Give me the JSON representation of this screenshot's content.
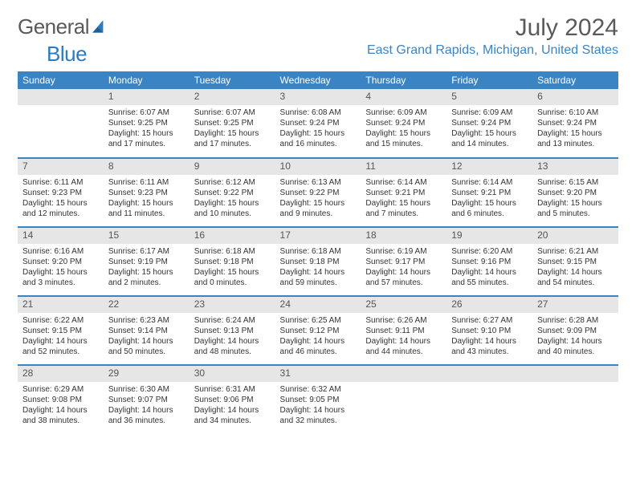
{
  "brand": {
    "part1": "General",
    "part2": "Blue"
  },
  "logo_colors": {
    "general": "#5a5a5a",
    "blue": "#2a7bbf",
    "sail": "#2a7bbf"
  },
  "header": {
    "month_year": "July 2024",
    "location": "East Grand Rapids, Michigan, United States"
  },
  "style": {
    "header_bg": "#3a84c4",
    "header_text": "#ffffff",
    "daynum_bg": "#e6e6e6",
    "row_border": "#3a84c4",
    "body_text": "#333333",
    "location_color": "#3a84c4",
    "title_color": "#5a5a5a",
    "font_family": "Arial, Helvetica, sans-serif",
    "title_fontsize_pt": 22,
    "location_fontsize_pt": 12,
    "th_fontsize_pt": 9,
    "cell_fontsize_pt": 7.5
  },
  "day_labels": [
    "Sunday",
    "Monday",
    "Tuesday",
    "Wednesday",
    "Thursday",
    "Friday",
    "Saturday"
  ],
  "weeks": [
    [
      {
        "n": "",
        "lines": []
      },
      {
        "n": "1",
        "lines": [
          "Sunrise: 6:07 AM",
          "Sunset: 9:25 PM",
          "Daylight: 15 hours and 17 minutes."
        ]
      },
      {
        "n": "2",
        "lines": [
          "Sunrise: 6:07 AM",
          "Sunset: 9:25 PM",
          "Daylight: 15 hours and 17 minutes."
        ]
      },
      {
        "n": "3",
        "lines": [
          "Sunrise: 6:08 AM",
          "Sunset: 9:24 PM",
          "Daylight: 15 hours and 16 minutes."
        ]
      },
      {
        "n": "4",
        "lines": [
          "Sunrise: 6:09 AM",
          "Sunset: 9:24 PM",
          "Daylight: 15 hours and 15 minutes."
        ]
      },
      {
        "n": "5",
        "lines": [
          "Sunrise: 6:09 AM",
          "Sunset: 9:24 PM",
          "Daylight: 15 hours and 14 minutes."
        ]
      },
      {
        "n": "6",
        "lines": [
          "Sunrise: 6:10 AM",
          "Sunset: 9:24 PM",
          "Daylight: 15 hours and 13 minutes."
        ]
      }
    ],
    [
      {
        "n": "7",
        "lines": [
          "Sunrise: 6:11 AM",
          "Sunset: 9:23 PM",
          "Daylight: 15 hours and 12 minutes."
        ]
      },
      {
        "n": "8",
        "lines": [
          "Sunrise: 6:11 AM",
          "Sunset: 9:23 PM",
          "Daylight: 15 hours and 11 minutes."
        ]
      },
      {
        "n": "9",
        "lines": [
          "Sunrise: 6:12 AM",
          "Sunset: 9:22 PM",
          "Daylight: 15 hours and 10 minutes."
        ]
      },
      {
        "n": "10",
        "lines": [
          "Sunrise: 6:13 AM",
          "Sunset: 9:22 PM",
          "Daylight: 15 hours and 9 minutes."
        ]
      },
      {
        "n": "11",
        "lines": [
          "Sunrise: 6:14 AM",
          "Sunset: 9:21 PM",
          "Daylight: 15 hours and 7 minutes."
        ]
      },
      {
        "n": "12",
        "lines": [
          "Sunrise: 6:14 AM",
          "Sunset: 9:21 PM",
          "Daylight: 15 hours and 6 minutes."
        ]
      },
      {
        "n": "13",
        "lines": [
          "Sunrise: 6:15 AM",
          "Sunset: 9:20 PM",
          "Daylight: 15 hours and 5 minutes."
        ]
      }
    ],
    [
      {
        "n": "14",
        "lines": [
          "Sunrise: 6:16 AM",
          "Sunset: 9:20 PM",
          "Daylight: 15 hours and 3 minutes."
        ]
      },
      {
        "n": "15",
        "lines": [
          "Sunrise: 6:17 AM",
          "Sunset: 9:19 PM",
          "Daylight: 15 hours and 2 minutes."
        ]
      },
      {
        "n": "16",
        "lines": [
          "Sunrise: 6:18 AM",
          "Sunset: 9:18 PM",
          "Daylight: 15 hours and 0 minutes."
        ]
      },
      {
        "n": "17",
        "lines": [
          "Sunrise: 6:18 AM",
          "Sunset: 9:18 PM",
          "Daylight: 14 hours and 59 minutes."
        ]
      },
      {
        "n": "18",
        "lines": [
          "Sunrise: 6:19 AM",
          "Sunset: 9:17 PM",
          "Daylight: 14 hours and 57 minutes."
        ]
      },
      {
        "n": "19",
        "lines": [
          "Sunrise: 6:20 AM",
          "Sunset: 9:16 PM",
          "Daylight: 14 hours and 55 minutes."
        ]
      },
      {
        "n": "20",
        "lines": [
          "Sunrise: 6:21 AM",
          "Sunset: 9:15 PM",
          "Daylight: 14 hours and 54 minutes."
        ]
      }
    ],
    [
      {
        "n": "21",
        "lines": [
          "Sunrise: 6:22 AM",
          "Sunset: 9:15 PM",
          "Daylight: 14 hours and 52 minutes."
        ]
      },
      {
        "n": "22",
        "lines": [
          "Sunrise: 6:23 AM",
          "Sunset: 9:14 PM",
          "Daylight: 14 hours and 50 minutes."
        ]
      },
      {
        "n": "23",
        "lines": [
          "Sunrise: 6:24 AM",
          "Sunset: 9:13 PM",
          "Daylight: 14 hours and 48 minutes."
        ]
      },
      {
        "n": "24",
        "lines": [
          "Sunrise: 6:25 AM",
          "Sunset: 9:12 PM",
          "Daylight: 14 hours and 46 minutes."
        ]
      },
      {
        "n": "25",
        "lines": [
          "Sunrise: 6:26 AM",
          "Sunset: 9:11 PM",
          "Daylight: 14 hours and 44 minutes."
        ]
      },
      {
        "n": "26",
        "lines": [
          "Sunrise: 6:27 AM",
          "Sunset: 9:10 PM",
          "Daylight: 14 hours and 43 minutes."
        ]
      },
      {
        "n": "27",
        "lines": [
          "Sunrise: 6:28 AM",
          "Sunset: 9:09 PM",
          "Daylight: 14 hours and 40 minutes."
        ]
      }
    ],
    [
      {
        "n": "28",
        "lines": [
          "Sunrise: 6:29 AM",
          "Sunset: 9:08 PM",
          "Daylight: 14 hours and 38 minutes."
        ]
      },
      {
        "n": "29",
        "lines": [
          "Sunrise: 6:30 AM",
          "Sunset: 9:07 PM",
          "Daylight: 14 hours and 36 minutes."
        ]
      },
      {
        "n": "30",
        "lines": [
          "Sunrise: 6:31 AM",
          "Sunset: 9:06 PM",
          "Daylight: 14 hours and 34 minutes."
        ]
      },
      {
        "n": "31",
        "lines": [
          "Sunrise: 6:32 AM",
          "Sunset: 9:05 PM",
          "Daylight: 14 hours and 32 minutes."
        ]
      },
      {
        "n": "",
        "lines": []
      },
      {
        "n": "",
        "lines": []
      },
      {
        "n": "",
        "lines": []
      }
    ]
  ]
}
